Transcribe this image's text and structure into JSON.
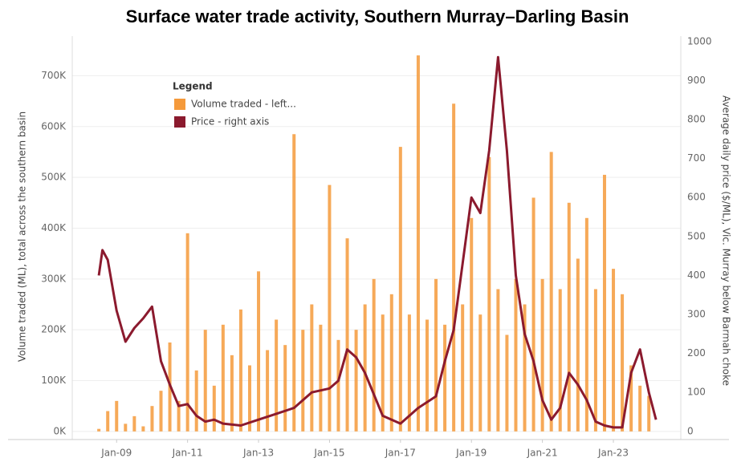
{
  "chart_data": {
    "type": "bar-line",
    "title": "Surface water trade activity, Southern Murray–Darling Basin",
    "y_label": "Volume traded (ML), total across the southern basin",
    "y2_label": "Average daily price ($/ML), Vic. Murray below Barmah choke",
    "legend_title": "Legend",
    "xlim": [
      2007.75,
      2024.9
    ],
    "xticks": [
      {
        "value": 2009,
        "label": "Jan-09"
      },
      {
        "value": 2011,
        "label": "Jan-11"
      },
      {
        "value": 2013,
        "label": "Jan-13"
      },
      {
        "value": 2015,
        "label": "Jan-15"
      },
      {
        "value": 2017,
        "label": "Jan-17"
      },
      {
        "value": 2019,
        "label": "Jan-19"
      },
      {
        "value": 2021,
        "label": "Jan-21"
      },
      {
        "value": 2023,
        "label": "Jan-23"
      }
    ],
    "ylim": [
      -16000,
      778000
    ],
    "yticks": [
      {
        "value": 0,
        "label": "0K"
      },
      {
        "value": 100000,
        "label": "100K"
      },
      {
        "value": 200000,
        "label": "200K"
      },
      {
        "value": 300000,
        "label": "300K"
      },
      {
        "value": 400000,
        "label": "400K"
      },
      {
        "value": 500000,
        "label": "500K"
      },
      {
        "value": 600000,
        "label": "600K"
      },
      {
        "value": 700000,
        "label": "700K"
      }
    ],
    "y2lim": [
      -21,
      1014
    ],
    "y2ticks": [
      0,
      100,
      200,
      300,
      400,
      500,
      600,
      700,
      800,
      900,
      1000
    ],
    "grid": true,
    "series": [
      {
        "name": "Volume traded - left...",
        "kind": "bar",
        "color": "#f59a3b",
        "x": [
          2008.5,
          2008.75,
          2009,
          2009.25,
          2009.5,
          2009.75,
          2010,
          2010.25,
          2010.5,
          2010.75,
          2011,
          2011.25,
          2011.5,
          2011.75,
          2012,
          2012.25,
          2012.5,
          2012.75,
          2013,
          2013.25,
          2013.5,
          2013.75,
          2014,
          2014.25,
          2014.5,
          2014.75,
          2015,
          2015.25,
          2015.5,
          2015.75,
          2016,
          2016.25,
          2016.5,
          2016.75,
          2017,
          2017.25,
          2017.5,
          2017.75,
          2018,
          2018.25,
          2018.5,
          2018.75,
          2019,
          2019.25,
          2019.5,
          2019.75,
          2020,
          2020.25,
          2020.5,
          2020.75,
          2021,
          2021.25,
          2021.5,
          2021.75,
          2022,
          2022.25,
          2022.5,
          2022.75,
          2023,
          2023.25,
          2023.5,
          2023.75,
          2024
        ],
        "values": [
          5000,
          40000,
          60000,
          15000,
          30000,
          10000,
          50000,
          80000,
          175000,
          60000,
          390000,
          120000,
          200000,
          90000,
          210000,
          150000,
          240000,
          130000,
          315000,
          160000,
          220000,
          170000,
          585000,
          200000,
          250000,
          210000,
          485000,
          180000,
          380000,
          200000,
          250000,
          300000,
          230000,
          270000,
          560000,
          230000,
          740000,
          220000,
          300000,
          210000,
          645000,
          250000,
          420000,
          230000,
          540000,
          280000,
          190000,
          300000,
          250000,
          460000,
          300000,
          550000,
          280000,
          450000,
          340000,
          420000,
          280000,
          505000,
          320000,
          270000,
          130000,
          90000,
          70000
        ]
      },
      {
        "name": "Price - right axis",
        "kind": "line",
        "axis": "y2",
        "color": "#8b1a2e",
        "x": [
          2008.5,
          2008.6,
          2008.75,
          2009,
          2009.25,
          2009.5,
          2009.75,
          2010,
          2010.25,
          2010.5,
          2010.75,
          2011,
          2011.25,
          2011.5,
          2011.75,
          2012,
          2012.5,
          2013,
          2013.5,
          2014,
          2014.5,
          2015,
          2015.25,
          2015.5,
          2015.75,
          2016,
          2016.5,
          2017,
          2017.5,
          2018,
          2018.25,
          2018.5,
          2018.75,
          2019,
          2019.25,
          2019.5,
          2019.75,
          2020,
          2020.25,
          2020.5,
          2020.75,
          2021,
          2021.25,
          2021.5,
          2021.75,
          2022,
          2022.25,
          2022.5,
          2022.75,
          2023,
          2023.25,
          2023.5,
          2023.75,
          2024,
          2024.2
        ],
        "values": [
          400,
          465,
          440,
          310,
          230,
          265,
          290,
          320,
          180,
          120,
          65,
          70,
          40,
          25,
          30,
          20,
          15,
          30,
          45,
          60,
          100,
          110,
          130,
          210,
          190,
          150,
          40,
          20,
          60,
          90,
          180,
          260,
          430,
          600,
          560,
          720,
          960,
          720,
          400,
          250,
          180,
          80,
          30,
          60,
          150,
          120,
          80,
          25,
          15,
          10,
          10,
          150,
          210,
          100,
          30
        ]
      }
    ]
  }
}
